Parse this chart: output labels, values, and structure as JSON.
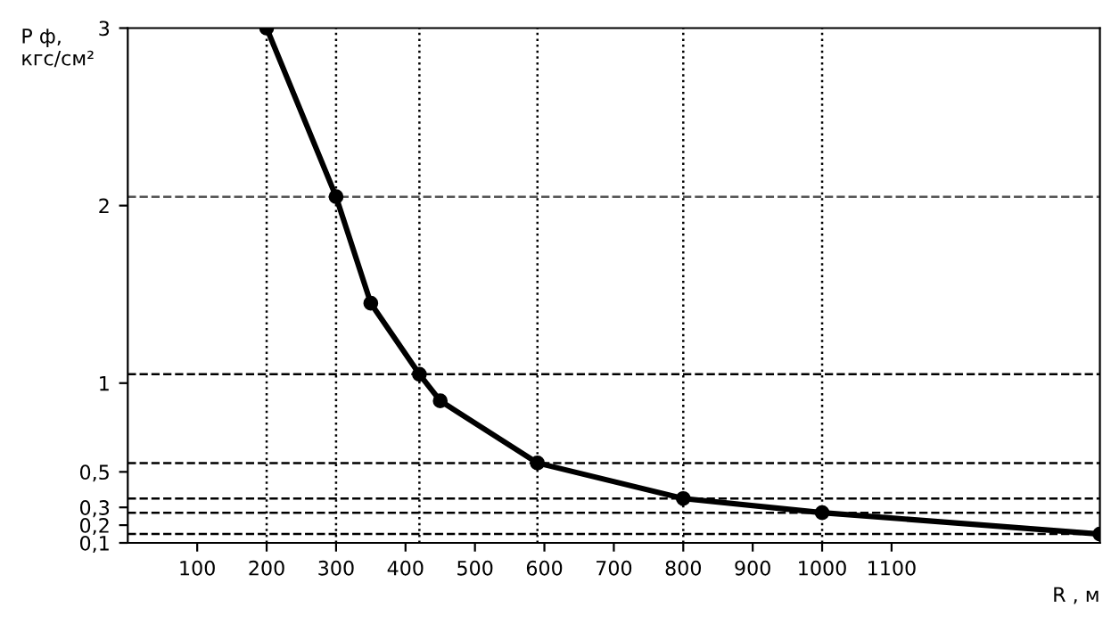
{
  "chart_data": {
    "type": "line",
    "ylabel": "Р ф,\nкгс/см²",
    "xlabel": "R , м",
    "x": [
      200,
      300,
      350,
      420,
      450,
      590,
      800,
      1000,
      1400
    ],
    "series": [
      {
        "color": "#000000",
        "values": [
          3,
          2.05,
          1.45,
          1.05,
          0.9,
          0.55,
          0.35,
          0.27,
          0.15
        ]
      }
    ],
    "xlim": [
      0,
      1400
    ],
    "ylim": [
      0.1,
      3.0
    ],
    "xticks": [
      100,
      200,
      300,
      400,
      500,
      600,
      700,
      800,
      900,
      1000,
      1100
    ],
    "yticks": [
      {
        "value": 0.1,
        "label": "0,1"
      },
      {
        "value": 0.2,
        "label": "0,2"
      },
      {
        "value": 0.3,
        "label": "0,3"
      },
      {
        "value": 0.5,
        "label": "0,5"
      },
      1,
      2,
      3
    ],
    "ref_lines": [
      {
        "axis": "y",
        "value": 2.05,
        "line_style": "dashed",
        "color": "#555555"
      },
      {
        "axis": "y",
        "value": 1.05,
        "line_style": "dashed",
        "color": "#000000"
      },
      {
        "axis": "y",
        "value": 0.55,
        "line_style": "dashed",
        "color": "#000000"
      },
      {
        "axis": "y",
        "value": 0.35,
        "line_style": "dashed",
        "color": "#000000"
      },
      {
        "axis": "y",
        "value": 0.27,
        "line_style": "dashed",
        "color": "#000000"
      },
      {
        "axis": "y",
        "value": 0.15,
        "line_style": "dashed",
        "color": "#000000"
      },
      {
        "axis": "x",
        "value": 200,
        "line_style": "dotted",
        "color": "#000000"
      },
      {
        "axis": "x",
        "value": 300,
        "line_style": "dotted",
        "color": "#000000"
      },
      {
        "axis": "x",
        "value": 420,
        "line_style": "dotted",
        "color": "#000000"
      },
      {
        "axis": "x",
        "value": 590,
        "line_style": "dotted",
        "color": "#000000"
      },
      {
        "axis": "x",
        "value": 800,
        "line_style": "dotted",
        "color": "#000000"
      },
      {
        "axis": "x",
        "value": 1000,
        "line_style": "dotted",
        "color": "#000000"
      }
    ],
    "grid": false,
    "marker": "circle",
    "line_style": "solid",
    "legend": false
  }
}
